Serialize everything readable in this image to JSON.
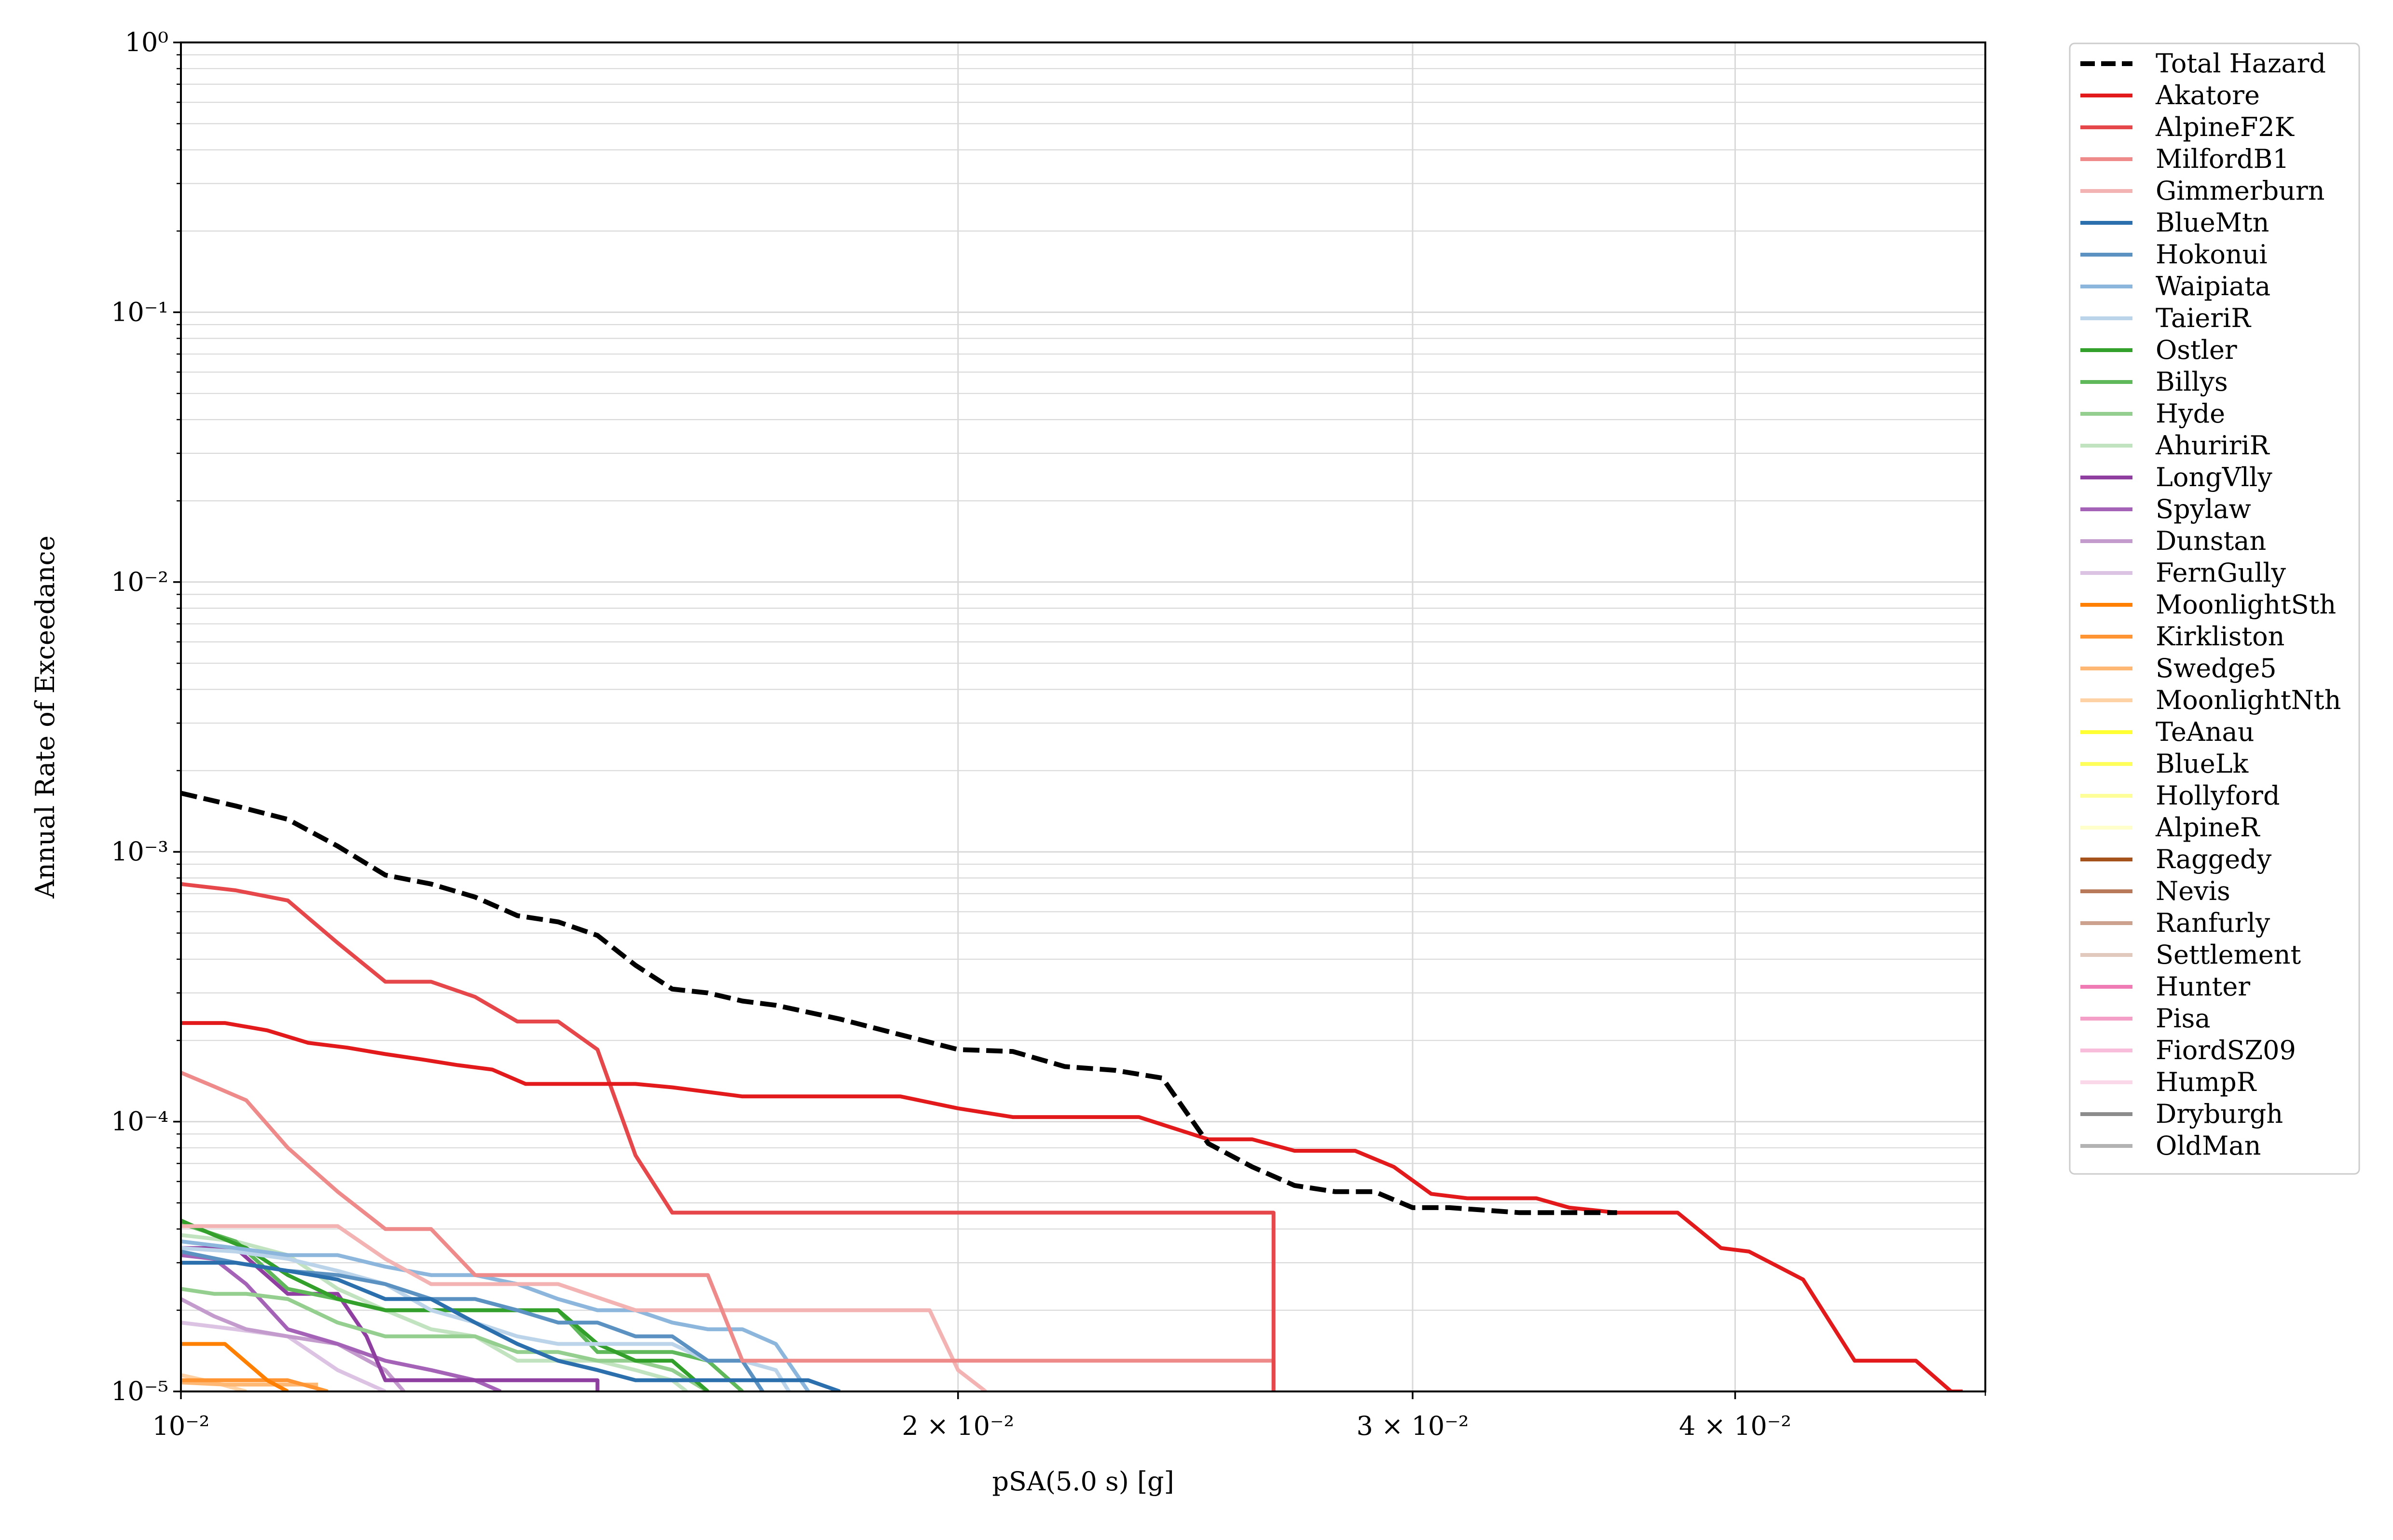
{
  "chart_data": {
    "type": "line",
    "xlabel": "pSA(5.0 s) [g]",
    "ylabel": "Annual Rate of Exceedance",
    "xscale": "log",
    "yscale": "log",
    "xlim": [
      0.01,
      0.05
    ],
    "ylim": [
      1e-05,
      1
    ],
    "grid": "on (major and minor)",
    "legend_position": "outside right, top",
    "x_ticks": [
      {
        "value": 0.01,
        "label": "10⁻²"
      },
      {
        "value": 0.02,
        "label": "2 × 10⁻²"
      },
      {
        "value": 0.03,
        "label": "3 × 10⁻²"
      },
      {
        "value": 0.04,
        "label": "4 × 10⁻²"
      }
    ],
    "y_ticks": [
      {
        "value": 1e-05,
        "label": "10⁻⁵"
      },
      {
        "value": 0.0001,
        "label": "10⁻⁴"
      },
      {
        "value": 0.001,
        "label": "10⁻³"
      },
      {
        "value": 0.01,
        "label": "10⁻²"
      },
      {
        "value": 0.1,
        "label": "10⁻¹"
      },
      {
        "value": 1,
        "label": "10⁰"
      }
    ],
    "series": [
      {
        "name": "Total Hazard",
        "color": "#000000",
        "dash": true,
        "x": [
          0.01,
          0.0105,
          0.011,
          0.0115,
          0.012,
          0.0125,
          0.013,
          0.0135,
          0.014,
          0.0145,
          0.015,
          0.0155,
          0.016,
          0.0165,
          0.017,
          0.018,
          0.019,
          0.02,
          0.021,
          0.022,
          0.023,
          0.024,
          0.025,
          0.026,
          0.027,
          0.028,
          0.029,
          0.03,
          0.031,
          0.033,
          0.034,
          0.036
        ],
        "y": [
          0.00165,
          0.00148,
          0.00132,
          0.00105,
          0.00082,
          0.00076,
          0.00068,
          0.00058,
          0.00055,
          0.00049,
          0.00038,
          0.00031,
          0.0003,
          0.00028,
          0.00027,
          0.00024,
          0.00021,
          0.000185,
          0.000182,
          0.00016,
          0.000155,
          0.000145,
          8.3e-05,
          6.8e-05,
          5.8e-05,
          5.5e-05,
          5.5e-05,
          4.8e-05,
          4.8e-05,
          4.6e-05,
          4.6e-05,
          4.6e-05
        ]
      },
      {
        "name": "Akatore",
        "color": "#e31a1c",
        "x": [
          0.01,
          0.0104,
          0.0108,
          0.0112,
          0.0116,
          0.012,
          0.0124,
          0.0128,
          0.0132,
          0.0136,
          0.0146,
          0.015,
          0.0155,
          0.0165,
          0.0175,
          0.019,
          0.02,
          0.021,
          0.0225,
          0.0235,
          0.025,
          0.026,
          0.027,
          0.0285,
          0.0295,
          0.0305,
          0.0315,
          0.0325,
          0.0335,
          0.0345,
          0.036,
          0.037,
          0.038,
          0.0395,
          0.0405,
          0.0425,
          0.0445,
          0.047,
          0.0485,
          0.049
        ],
        "y": [
          0.000232,
          0.000232,
          0.000218,
          0.000196,
          0.000188,
          0.000178,
          0.00017,
          0.000162,
          0.000156,
          0.000138,
          0.000138,
          0.000138,
          0.000134,
          0.000124,
          0.000124,
          0.000124,
          0.000112,
          0.000104,
          0.000104,
          0.000104,
          8.6e-05,
          8.6e-05,
          7.8e-05,
          7.8e-05,
          6.8e-05,
          5.4e-05,
          5.2e-05,
          5.2e-05,
          5.2e-05,
          4.8e-05,
          4.6e-05,
          4.6e-05,
          4.6e-05,
          3.4e-05,
          3.3e-05,
          2.6e-05,
          1.3e-05,
          1.3e-05,
          1e-05,
          1e-05
        ]
      },
      {
        "name": "AlpineF2K",
        "color": "#e6474a",
        "x": [
          0.01,
          0.0105,
          0.011,
          0.0115,
          0.012,
          0.0125,
          0.013,
          0.0135,
          0.014,
          0.0145,
          0.015,
          0.0155,
          0.016,
          0.0165,
          0.017,
          0.018,
          0.019,
          0.02,
          0.021,
          0.022,
          0.023,
          0.024,
          0.025,
          0.026,
          0.0265,
          0.0265
        ],
        "y": [
          0.00076,
          0.00072,
          0.00066,
          0.00046,
          0.00033,
          0.00033,
          0.00029,
          0.000235,
          0.000235,
          0.000185,
          7.5e-05,
          4.6e-05,
          4.6e-05,
          4.6e-05,
          4.6e-05,
          4.6e-05,
          4.6e-05,
          4.6e-05,
          4.6e-05,
          4.6e-05,
          4.6e-05,
          4.6e-05,
          4.6e-05,
          4.6e-05,
          4.6e-05,
          1e-05
        ]
      },
      {
        "name": "MilfordB1",
        "color": "#ee8a8a",
        "x": [
          0.01,
          0.0103,
          0.0106,
          0.011,
          0.0115,
          0.012,
          0.0125,
          0.013,
          0.0135,
          0.014,
          0.0145,
          0.015,
          0.0155,
          0.016,
          0.0165,
          0.017,
          0.018,
          0.02,
          0.022,
          0.024,
          0.0265,
          0.0265
        ],
        "y": [
          0.000152,
          0.000135,
          0.00012,
          8e-05,
          5.5e-05,
          4e-05,
          4e-05,
          2.7e-05,
          2.7e-05,
          2.7e-05,
          2.7e-05,
          2.7e-05,
          2.7e-05,
          2.7e-05,
          1.3e-05,
          1.3e-05,
          1.3e-05,
          1.3e-05,
          1.3e-05,
          1.3e-05,
          1.3e-05,
          1e-05
        ]
      },
      {
        "name": "Gimmerburn",
        "color": "#f4b3b3",
        "x": [
          0.01,
          0.011,
          0.0115,
          0.012,
          0.0125,
          0.013,
          0.014,
          0.015,
          0.016,
          0.017,
          0.018,
          0.019,
          0.0195,
          0.02,
          0.0205
        ],
        "y": [
          4.1e-05,
          4.1e-05,
          4.1e-05,
          3.1e-05,
          2.5e-05,
          2.5e-05,
          2.5e-05,
          2e-05,
          2e-05,
          2e-05,
          2e-05,
          2e-05,
          2e-05,
          1.2e-05,
          1e-05
        ]
      },
      {
        "name": "BlueMtn",
        "color": "#2c6fad",
        "x": [
          0.01,
          0.0105,
          0.011,
          0.0115,
          0.012,
          0.0125,
          0.013,
          0.0135,
          0.014,
          0.0145,
          0.015,
          0.0155,
          0.016,
          0.0165,
          0.017,
          0.0175,
          0.018
        ],
        "y": [
          3e-05,
          3e-05,
          2.8e-05,
          2.6e-05,
          2.2e-05,
          2.2e-05,
          1.8e-05,
          1.5e-05,
          1.3e-05,
          1.2e-05,
          1.1e-05,
          1.1e-05,
          1.1e-05,
          1.1e-05,
          1.1e-05,
          1.1e-05,
          1e-05
        ]
      },
      {
        "name": "Hokonui",
        "color": "#5b92c2",
        "x": [
          0.01,
          0.0105,
          0.011,
          0.0115,
          0.012,
          0.0125,
          0.013,
          0.0135,
          0.014,
          0.0145,
          0.015,
          0.0155,
          0.016,
          0.0165,
          0.0168
        ],
        "y": [
          3.3e-05,
          3e-05,
          2.8e-05,
          2.7e-05,
          2.5e-05,
          2.2e-05,
          2.2e-05,
          2e-05,
          1.8e-05,
          1.8e-05,
          1.6e-05,
          1.6e-05,
          1.3e-05,
          1.3e-05,
          1e-05
        ]
      },
      {
        "name": "Waipiata",
        "color": "#8cb6dc",
        "x": [
          0.01,
          0.0105,
          0.011,
          0.0115,
          0.012,
          0.0125,
          0.013,
          0.0135,
          0.014,
          0.0145,
          0.015,
          0.0155,
          0.016,
          0.0165,
          0.017,
          0.0175
        ],
        "y": [
          3.6e-05,
          3.4e-05,
          3.2e-05,
          3.2e-05,
          2.9e-05,
          2.7e-05,
          2.7e-05,
          2.5e-05,
          2.2e-05,
          2e-05,
          2e-05,
          1.8e-05,
          1.7e-05,
          1.7e-05,
          1.5e-05,
          1e-05
        ]
      },
      {
        "name": "TaieriR",
        "color": "#bcd4ea",
        "x": [
          0.01,
          0.0105,
          0.011,
          0.0115,
          0.012,
          0.0125,
          0.013,
          0.0135,
          0.014,
          0.0145,
          0.015,
          0.0155,
          0.016,
          0.0165,
          0.017,
          0.0172
        ],
        "y": [
          3.4e-05,
          3.3e-05,
          3.1e-05,
          2.8e-05,
          2.5e-05,
          2e-05,
          1.8e-05,
          1.6e-05,
          1.5e-05,
          1.5e-05,
          1.5e-05,
          1.5e-05,
          1.3e-05,
          1.3e-05,
          1.2e-05,
          1e-05
        ]
      },
      {
        "name": "Ostler",
        "color": "#33a02c",
        "x": [
          0.01,
          0.0103,
          0.0106,
          0.011,
          0.0115,
          0.012,
          0.0125,
          0.013,
          0.0135,
          0.014,
          0.0145,
          0.015,
          0.0155,
          0.016
        ],
        "y": [
          4.3e-05,
          3.8e-05,
          3.4e-05,
          2.7e-05,
          2.2e-05,
          2e-05,
          2e-05,
          2e-05,
          2e-05,
          2e-05,
          1.5e-05,
          1.3e-05,
          1.3e-05,
          1e-05
        ]
      },
      {
        "name": "Billys",
        "color": "#5fb85a",
        "x": [
          0.01,
          0.0105,
          0.011,
          0.0115,
          0.012,
          0.0125,
          0.013,
          0.0135,
          0.014,
          0.0145,
          0.015,
          0.0155,
          0.016,
          0.0165
        ],
        "y": [
          4.2e-05,
          3.6e-05,
          2.4e-05,
          2.2e-05,
          2e-05,
          2e-05,
          2e-05,
          2e-05,
          2e-05,
          1.4e-05,
          1.4e-05,
          1.4e-05,
          1.3e-05,
          1e-05
        ]
      },
      {
        "name": "Hyde",
        "color": "#95cf8f",
        "x": [
          0.01,
          0.0103,
          0.0106,
          0.011,
          0.0115,
          0.012,
          0.0125,
          0.013,
          0.0135,
          0.014,
          0.0145,
          0.015,
          0.0155,
          0.016
        ],
        "y": [
          2.4e-05,
          2.3e-05,
          2.3e-05,
          2.2e-05,
          1.8e-05,
          1.6e-05,
          1.6e-05,
          1.6e-05,
          1.4e-05,
          1.4e-05,
          1.3e-05,
          1.3e-05,
          1.2e-05,
          1e-05
        ]
      },
      {
        "name": "AhuririR",
        "color": "#c2e3bf",
        "x": [
          0.01,
          0.0105,
          0.011,
          0.0115,
          0.012,
          0.0125,
          0.013,
          0.0135,
          0.014,
          0.0145,
          0.015,
          0.0155,
          0.0157
        ],
        "y": [
          3.8e-05,
          3.6e-05,
          3.2e-05,
          2.4e-05,
          2e-05,
          1.7e-05,
          1.6e-05,
          1.3e-05,
          1.3e-05,
          1.3e-05,
          1.2e-05,
          1.1e-05,
          1e-05
        ]
      },
      {
        "name": "LongVlly",
        "color": "#8e3fa0",
        "x": [
          0.01,
          0.0105,
          0.011,
          0.0115,
          0.0118,
          0.012,
          0.0125,
          0.013,
          0.0135,
          0.014,
          0.0145,
          0.0145
        ],
        "y": [
          3.4e-05,
          3.4e-05,
          2.3e-05,
          2.3e-05,
          1.6e-05,
          1.1e-05,
          1.1e-05,
          1.1e-05,
          1.1e-05,
          1.1e-05,
          1.1e-05,
          1e-05
        ]
      },
      {
        "name": "Spylaw",
        "color": "#a463b6",
        "x": [
          0.01,
          0.0103,
          0.0106,
          0.011,
          0.0115,
          0.012,
          0.0125,
          0.013,
          0.0133
        ],
        "y": [
          3.2e-05,
          3.1e-05,
          2.5e-05,
          1.7e-05,
          1.5e-05,
          1.3e-05,
          1.2e-05,
          1.1e-05,
          1e-05
        ]
      },
      {
        "name": "Dunstan",
        "color": "#c39ccd",
        "x": [
          0.01,
          0.0103,
          0.0106,
          0.011,
          0.0115,
          0.012,
          0.0122
        ],
        "y": [
          2.2e-05,
          1.9e-05,
          1.7e-05,
          1.6e-05,
          1.5e-05,
          1.2e-05,
          1e-05
        ]
      },
      {
        "name": "FernGully",
        "color": "#dcc3e3",
        "x": [
          0.01,
          0.0105,
          0.011,
          0.0115,
          0.012
        ],
        "y": [
          1.8e-05,
          1.7e-05,
          1.6e-05,
          1.2e-05,
          1e-05
        ]
      },
      {
        "name": "MoonlightSth",
        "color": "#ff7f00",
        "x": [
          0.01,
          0.0104,
          0.0108,
          0.011
        ],
        "y": [
          1.5e-05,
          1.5e-05,
          1.1e-05,
          1e-05
        ]
      },
      {
        "name": "Kirkliston",
        "color": "#ff9433",
        "x": [
          0.01,
          0.0105,
          0.011,
          0.0114
        ],
        "y": [
          1.1e-05,
          1.1e-05,
          1.1e-05,
          1e-05
        ]
      },
      {
        "name": "Swedge5",
        "color": "#ffb774",
        "x": [
          0.01,
          0.0104,
          0.0108,
          0.0113
        ],
        "y": [
          1.08e-05,
          1.06e-05,
          1.06e-05,
          1.06e-05
        ]
      },
      {
        "name": "MoonlightNth",
        "color": "#ffd2a6",
        "x": [
          0.01,
          0.0103,
          0.0106
        ],
        "y": [
          1.15e-05,
          1.08e-05,
          1e-05
        ]
      },
      {
        "name": "TeAnau",
        "color": "#ffff33",
        "x": [],
        "y": []
      },
      {
        "name": "BlueLk",
        "color": "#ffff5c",
        "x": [],
        "y": []
      },
      {
        "name": "Hollyford",
        "color": "#ffff99",
        "x": [],
        "y": []
      },
      {
        "name": "AlpineR",
        "color": "#ffffcc",
        "x": [],
        "y": []
      },
      {
        "name": "Raggedy",
        "color": "#a6521c",
        "x": [],
        "y": []
      },
      {
        "name": "Nevis",
        "color": "#b8785a",
        "x": [],
        "y": []
      },
      {
        "name": "Ranfurly",
        "color": "#cca28e",
        "x": [],
        "y": []
      },
      {
        "name": "Settlement",
        "color": "#e2c9bd",
        "x": [],
        "y": []
      },
      {
        "name": "Hunter",
        "color": "#f07ab4",
        "x": [],
        "y": []
      },
      {
        "name": "Pisa",
        "color": "#f49fc8",
        "x": [],
        "y": []
      },
      {
        "name": "FiordSZ09",
        "color": "#f7bddb",
        "x": [],
        "y": []
      },
      {
        "name": "HumpR",
        "color": "#fad8e9",
        "x": [],
        "y": []
      },
      {
        "name": "Dryburgh",
        "color": "#8c8c8c",
        "x": [],
        "y": []
      },
      {
        "name": "OldMan",
        "color": "#b3b3b3",
        "x": [],
        "y": []
      }
    ]
  }
}
